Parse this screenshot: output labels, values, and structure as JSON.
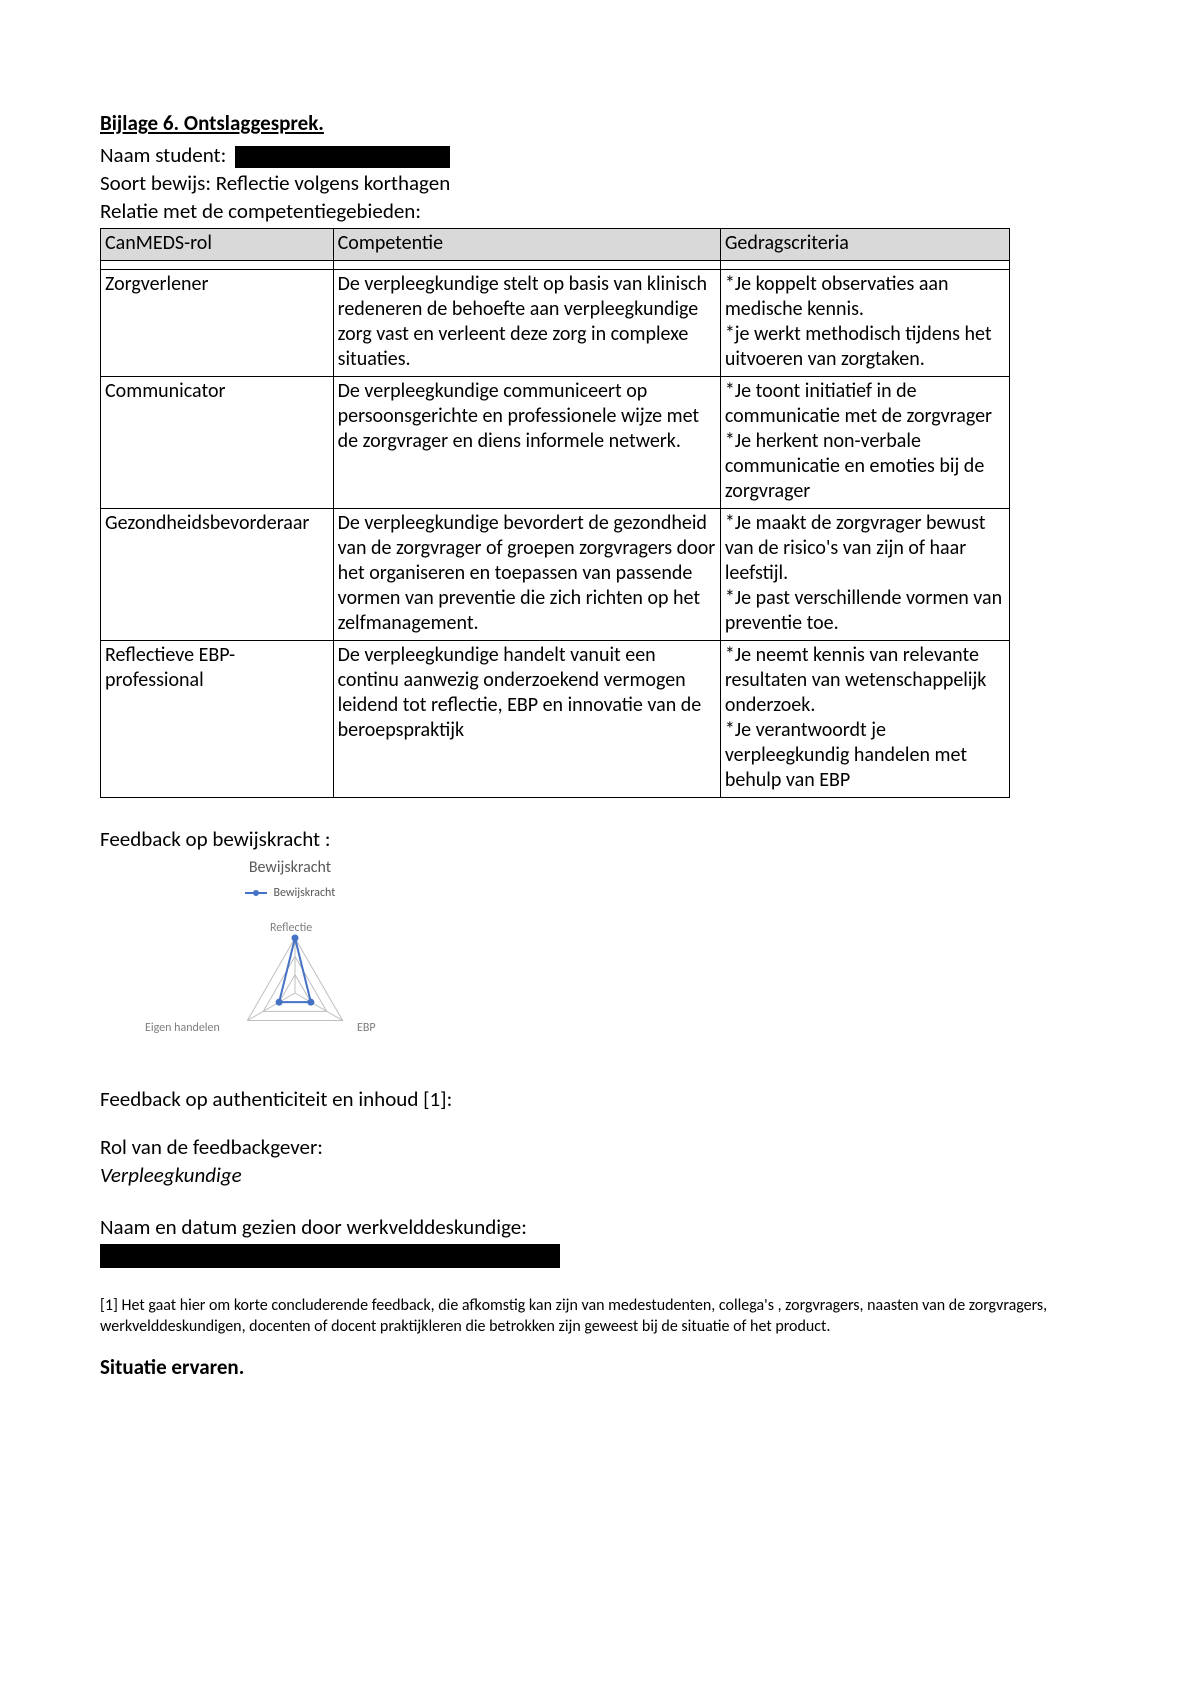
{
  "title": "Bijlage 6. Ontslaggesprek.",
  "naam_label": "Naam student:",
  "soort_bewijs": "Soort bewijs: Reflectie volgens korthagen",
  "relatie_label": "Relatie met de competentiegebieden:",
  "table": {
    "headers": [
      "CanMEDS-rol",
      "Competentie",
      "Gedragscriteria"
    ],
    "rows": [
      {
        "role": "Zorgverlener",
        "comp": "De verpleegkundige stelt op basis van klinisch redeneren de behoefte aan verpleegkundige zorg vast en verleent deze zorg in complexe situaties.",
        "crit": "*Je koppelt observaties aan medische kennis.\n*je werkt methodisch tijdens het uitvoeren van zorgtaken."
      },
      {
        "role": "Communicator",
        "comp": "De verpleegkundige communiceert op persoonsgerichte en professionele wijze met de zorgvrager en diens informele netwerk.",
        "crit": "*Je toont initiatief in de communicatie met de zorgvrager\n*Je herkent non-verbale communicatie en emoties bij de zorgvrager"
      },
      {
        "role": "Gezondheidsbevorderaar",
        "comp": "De verpleegkundige bevordert de gezondheid van de zorgvrager of groepen zorgvragers door het organiseren en toepassen van passende vormen van preventie die zich richten op het zelfmanagement.",
        "crit": "*Je maakt de zorgvrager bewust van de risico's van zijn of haar leefstijl.\n*Je past verschillende vormen van preventie toe."
      },
      {
        "role": "Reflectieve EBP-professional",
        "comp": "De verpleegkundige handelt vanuit een continu aanwezig onderzoekend vermogen leidend tot reflectie, EBP en innovatie van de beroepspraktijk",
        "crit": "*Je neemt kennis van relevante resultaten van wetenschappelijk onderzoek.\n*Je verantwoordt je verpleegkundig handelen met behulp van EBP"
      }
    ]
  },
  "feedback_bewijskracht_label": "Feedback op bewijskracht :",
  "chart": {
    "type": "radar",
    "title": "Bewijskracht",
    "legend_label": "Bewijskracht",
    "axes": [
      "Reflectie",
      "EBP",
      "Eigen handelen"
    ],
    "values": [
      3,
      1,
      1
    ],
    "max": 3,
    "line_color": "#4472c4",
    "marker_color": "#4472c4",
    "grid_color": "#bfbfbf",
    "text_color": "#7f7f7f",
    "title_color": "#595959",
    "title_fontsize": 16,
    "axis_fontsize": 12
  },
  "feedback_auth_label": "Feedback op authenticiteit en inhoud  [1]:",
  "role_feedback_label": "Rol van de feedbackgever:",
  "role_feedback_value": "Verpleegkundige",
  "naam_datum_label": "Naam en datum gezien door werkvelddeskundige:",
  "footnote": "[1] Het gaat hier om korte concluderende feedback,  die afkomstig  kan zijn van medestudenten, collega's , zorgvragers, naasten van de zorgvragers, werkvelddeskundigen, docenten of docent praktijkleren die betrokken zijn geweest bij de situatie of het product.",
  "final_heading": "Situatie ervaren.",
  "redaction_color": "#000000"
}
